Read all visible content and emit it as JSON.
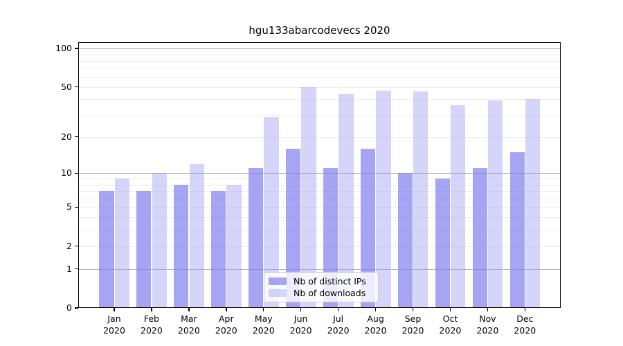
{
  "chart_data": {
    "type": "bar",
    "title": "hgu133abarcodevecs 2020",
    "y_scale": "log10(1+value)",
    "x_tick_months": [
      "Jan",
      "Feb",
      "Mar",
      "Apr",
      "May",
      "Jun",
      "Jul",
      "Aug",
      "Sep",
      "Oct",
      "Nov",
      "Dec"
    ],
    "x_tick_year": "2020",
    "categories": [
      "Jan 2020",
      "Feb 2020",
      "Mar 2020",
      "Apr 2020",
      "May 2020",
      "Jun 2020",
      "Jul 2020",
      "Aug 2020",
      "Sep 2020",
      "Oct 2020",
      "Nov 2020",
      "Dec 2020"
    ],
    "series": [
      {
        "name": "Nb of distinct IPs",
        "color": "rgba(130,130,240,0.72)",
        "values": [
          7,
          7,
          8,
          7,
          11,
          16,
          11,
          16,
          10,
          9,
          11,
          15
        ]
      },
      {
        "name": "Nb of downloads",
        "color": "rgba(155,155,240,0.42)",
        "values": [
          9,
          10,
          12,
          8,
          29,
          50,
          44,
          47,
          46,
          36,
          39,
          40
        ]
      }
    ],
    "y_ticks": [
      0,
      1,
      2,
      5,
      10,
      20,
      50,
      100
    ],
    "y_gridlines_major": [
      1,
      10,
      100
    ],
    "y_gridlines_minor": [
      2,
      3,
      4,
      5,
      6,
      7,
      8,
      9,
      20,
      30,
      40,
      50,
      60,
      70,
      80,
      90
    ],
    "ylim": [
      0,
      110
    ],
    "grid": true,
    "legend_position": "lower center",
    "colors": {
      "bar_ips_composited": "#a6a6f3",
      "bar_downloads_composited": "#d9d9f8",
      "grid_major": "#b2b2b2",
      "grid_minor": "#ebebeb",
      "axis": "#000000"
    }
  }
}
